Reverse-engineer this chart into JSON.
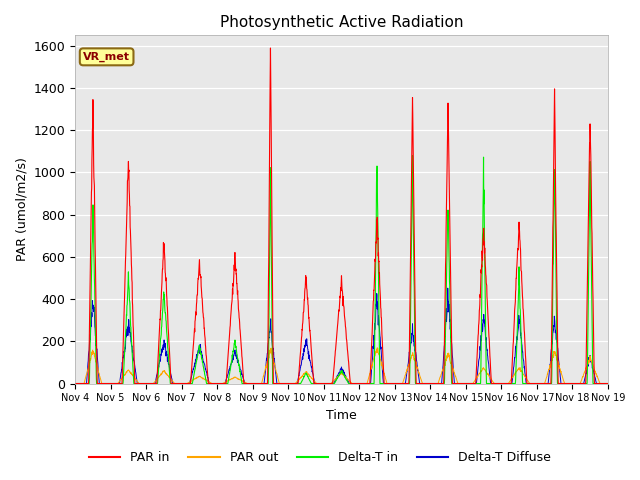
{
  "title": "Photosynthetic Active Radiation",
  "ylabel": "PAR (umol/m2/s)",
  "xlabel": "Time",
  "label_text": "VR_met",
  "ylim": [
    0,
    1650
  ],
  "background_color": "#e8e8e8",
  "plot_bg": "#f0f0f0",
  "colors": {
    "PAR_in": "#ff0000",
    "PAR_out": "#ffa500",
    "Delta_T_in": "#00ee00",
    "Delta_T_Diffuse": "#0000cc"
  },
  "legend_labels": [
    "PAR in",
    "PAR out",
    "Delta-T in",
    "Delta-T Diffuse"
  ],
  "xtick_labels": [
    "Nov 4",
    "Nov 5",
    "Nov 6",
    "Nov 7",
    "Nov 8",
    "Nov 9",
    "Nov 10",
    "Nov 11",
    "Nov 12",
    "Nov 13",
    "Nov 14",
    "Nov 15",
    "Nov 16",
    "Nov 17",
    "Nov 18",
    "Nov 19"
  ],
  "n_days": 15,
  "n_per_day": 144,
  "par_in_peaks": [
    1340,
    1060,
    670,
    570,
    600,
    1580,
    500,
    490,
    780,
    1370,
    1300,
    730,
    760,
    1350,
    1280
  ],
  "par_out_peaks": [
    160,
    65,
    60,
    35,
    30,
    160,
    55,
    50,
    170,
    140,
    140,
    75,
    75,
    155,
    120
  ],
  "delta_t_in_peaks": [
    860,
    500,
    430,
    180,
    200,
    1020,
    50,
    60,
    1080,
    1080,
    860,
    1030,
    520,
    1050,
    1030
  ],
  "delta_t_diff_peaks": [
    400,
    290,
    200,
    180,
    150,
    280,
    200,
    75,
    410,
    250,
    420,
    315,
    305,
    310,
    130
  ],
  "par_in_width": [
    0.12,
    0.18,
    0.2,
    0.25,
    0.25,
    0.08,
    0.22,
    0.25,
    0.2,
    0.1,
    0.12,
    0.22,
    0.22,
    0.1,
    0.12
  ],
  "delta_t_in_width": [
    0.1,
    0.15,
    0.18,
    0.2,
    0.2,
    0.06,
    0.15,
    0.2,
    0.08,
    0.08,
    0.1,
    0.08,
    0.1,
    0.08,
    0.08
  ],
  "delta_t_diff_width": [
    0.18,
    0.25,
    0.25,
    0.28,
    0.28,
    0.18,
    0.25,
    0.22,
    0.18,
    0.2,
    0.18,
    0.2,
    0.2,
    0.18,
    0.18
  ],
  "par_out_width": [
    0.25,
    0.3,
    0.3,
    0.35,
    0.35,
    0.25,
    0.3,
    0.3,
    0.28,
    0.28,
    0.28,
    0.3,
    0.3,
    0.28,
    0.28
  ]
}
